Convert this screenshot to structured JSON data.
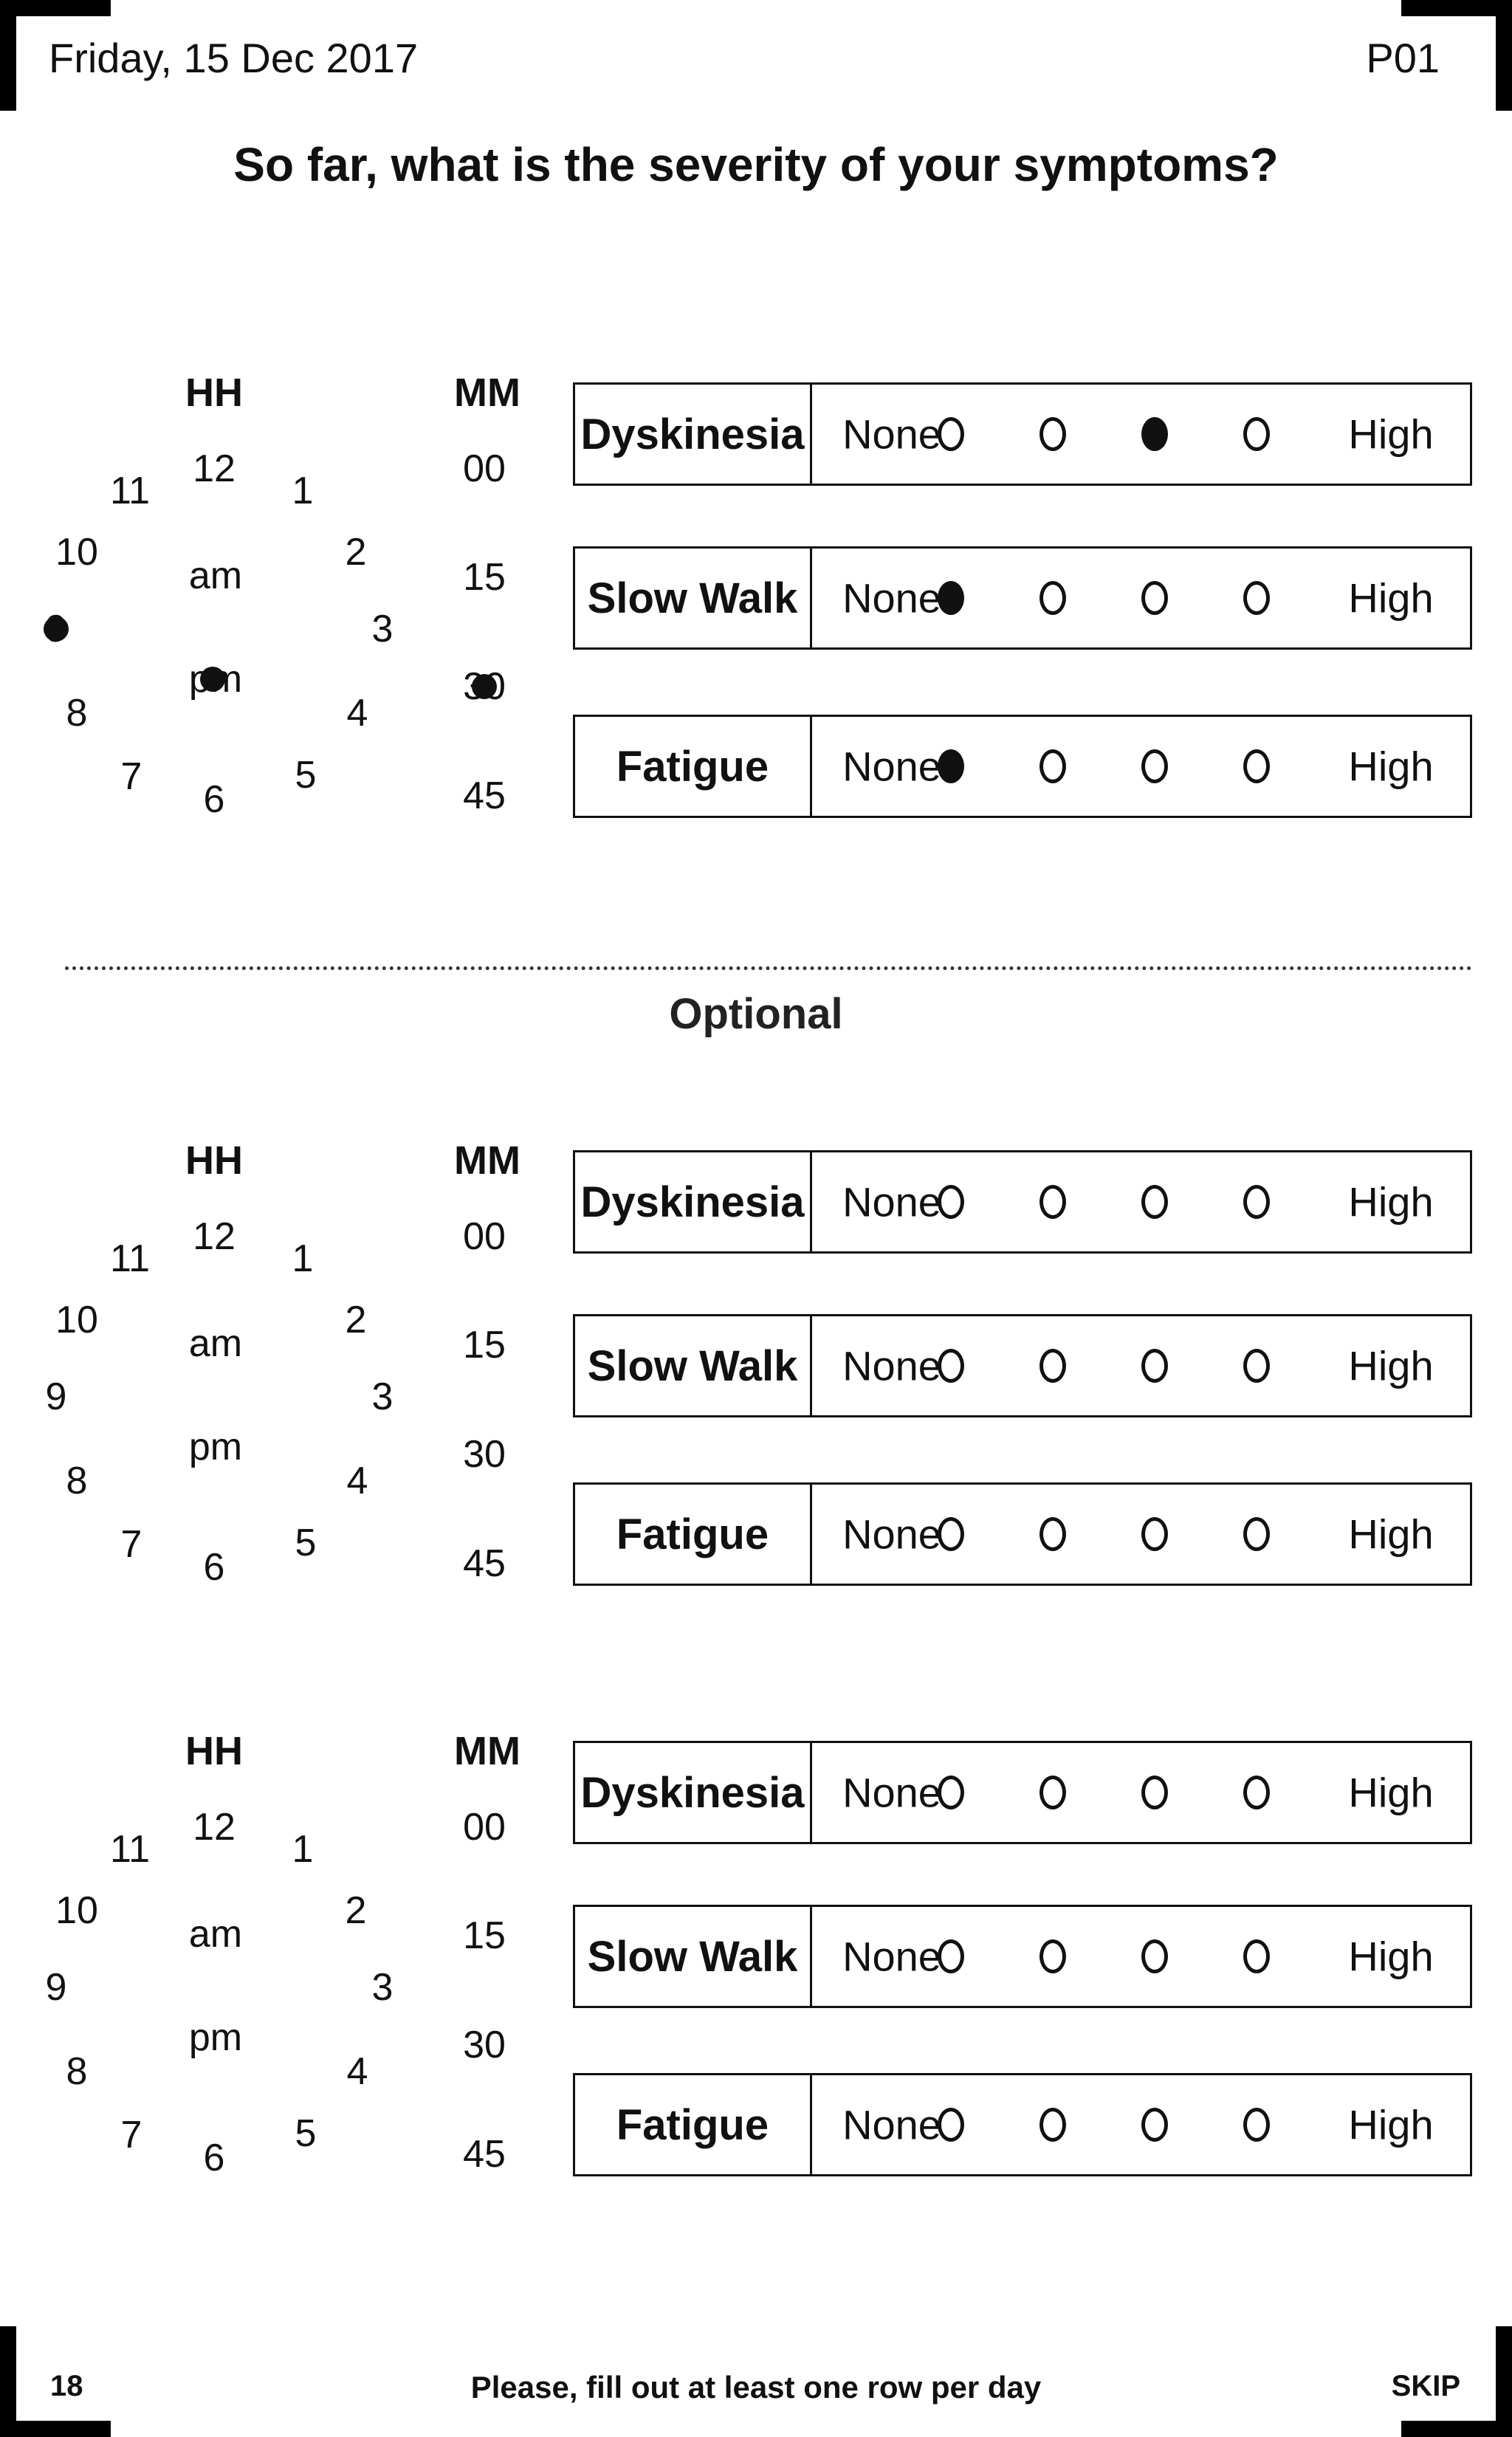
{
  "header": {
    "date": "Friday, 15 Dec 2017",
    "participant": "P01",
    "question": "So far, what is the severity of your symptoms?"
  },
  "clock_labels": {
    "hh": "HH",
    "mm": "MM",
    "hours": [
      "12",
      "1",
      "2",
      "3",
      "4",
      "5",
      "6",
      "7",
      "8",
      "9",
      "10",
      "11"
    ],
    "am": "am",
    "pm": "pm",
    "minutes": [
      "00",
      "15",
      "30",
      "45"
    ]
  },
  "scale": {
    "low": "None",
    "high": "High"
  },
  "symptoms": [
    "Dyskinesia",
    "Slow Walk",
    "Fatigue"
  ],
  "sections": [
    {
      "selected_hour": "9",
      "selected_period": "pm",
      "selected_minute": "30",
      "ratings": {
        "Dyskinesia": 3,
        "Slow Walk": 1,
        "Fatigue": 1
      }
    },
    {
      "ratings": {}
    },
    {
      "ratings": {}
    }
  ],
  "optional_label": "Optional",
  "footer": {
    "page_number": "18",
    "instruction": "Please, fill out at least one row per day",
    "skip": "SKIP"
  }
}
